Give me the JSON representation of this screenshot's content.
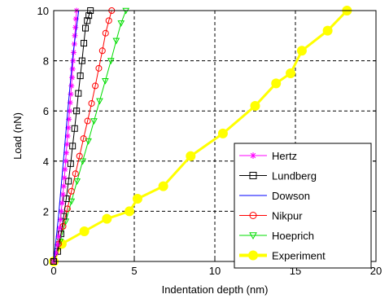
{
  "chart_data": {
    "type": "line",
    "title": "",
    "xlabel": "Indentation depth (nm)",
    "ylabel": "Load (nN)",
    "xlim": [
      0,
      20
    ],
    "ylim": [
      0,
      10
    ],
    "xticks": [
      "0",
      "5",
      "10",
      "15",
      "20"
    ],
    "yticks": [
      "0",
      "2",
      "4",
      "6",
      "8",
      "10"
    ],
    "grid": true,
    "legend_position": "bottom-right",
    "series": [
      {
        "name": "Hertz",
        "color": "#ff00ff",
        "marker": "star",
        "linewidth": 1,
        "x": [
          0,
          0.14,
          0.23,
          0.3,
          0.36,
          0.42,
          0.47,
          0.52,
          0.57,
          0.62,
          0.66,
          0.7,
          0.74,
          0.78,
          0.82,
          0.86,
          0.9,
          0.94,
          0.98,
          1.02,
          1.06,
          1.1,
          1.14,
          1.17,
          1.2,
          1.24,
          1.28,
          1.31,
          1.35,
          1.38,
          1.42
        ],
        "y": [
          0,
          0.33,
          0.67,
          1.0,
          1.33,
          1.67,
          2.0,
          2.33,
          2.67,
          3.0,
          3.33,
          3.67,
          4.0,
          4.33,
          4.67,
          5.0,
          5.33,
          5.67,
          6.0,
          6.33,
          6.67,
          7.0,
          7.33,
          7.67,
          8.0,
          8.33,
          8.67,
          9.0,
          9.33,
          9.67,
          10.0
        ]
      },
      {
        "name": "Lundberg",
        "color": "#000000",
        "marker": "square",
        "linewidth": 1,
        "x": [
          0,
          0.25,
          0.45,
          0.62,
          0.78,
          0.92,
          1.05,
          1.17,
          1.3,
          1.42,
          1.53,
          1.65,
          1.76,
          1.87,
          1.97,
          2.08,
          2.18,
          2.28
        ],
        "y": [
          0,
          0.4,
          1.1,
          1.8,
          2.5,
          3.2,
          3.9,
          4.6,
          5.3,
          6.0,
          6.7,
          7.4,
          8.0,
          8.7,
          9.3,
          9.6,
          9.8,
          10.0
        ]
      },
      {
        "name": "Dowson",
        "color": "#0000ff",
        "marker": "none",
        "linewidth": 1,
        "x": [
          0,
          0.3,
          0.6,
          0.9,
          1.2,
          1.55
        ],
        "y": [
          0,
          1.8,
          4.0,
          6.2,
          8.3,
          10.0
        ]
      },
      {
        "name": "Nikpur",
        "color": "#ff0000",
        "marker": "circle",
        "linewidth": 1,
        "x": [
          0,
          0.3,
          0.58,
          0.85,
          1.1,
          1.35,
          1.6,
          1.85,
          2.1,
          2.35,
          2.58,
          2.8,
          3.02,
          3.22,
          3.42,
          3.6
        ],
        "y": [
          0,
          0.7,
          1.4,
          2.1,
          2.8,
          3.5,
          4.2,
          4.9,
          5.6,
          6.3,
          7.0,
          7.7,
          8.4,
          9.1,
          9.6,
          10.0
        ]
      },
      {
        "name": "Hoeprich",
        "color": "#00dd00",
        "marker": "triangle-down",
        "linewidth": 1,
        "x": [
          0,
          0.4,
          0.75,
          1.1,
          1.45,
          1.8,
          2.15,
          2.5,
          2.85,
          3.2,
          3.55,
          3.88,
          4.18,
          4.48
        ],
        "y": [
          0,
          0.8,
          1.6,
          2.4,
          3.2,
          4.0,
          4.8,
          5.6,
          6.4,
          7.2,
          8.0,
          8.8,
          9.5,
          10.0
        ]
      },
      {
        "name": "Experiment",
        "color": "#ffff00",
        "marker": "circle-filled",
        "linewidth": 3,
        "x": [
          0,
          0.5,
          1.9,
          3.3,
          4.7,
          5.2,
          6.8,
          8.5,
          10.5,
          12.5,
          13.8,
          14.7,
          15.4,
          17.0,
          18.2
        ],
        "y": [
          0,
          0.7,
          1.2,
          1.7,
          2.0,
          2.5,
          3.0,
          4.2,
          5.1,
          6.2,
          7.1,
          7.5,
          8.4,
          9.2,
          10.0
        ]
      }
    ]
  }
}
